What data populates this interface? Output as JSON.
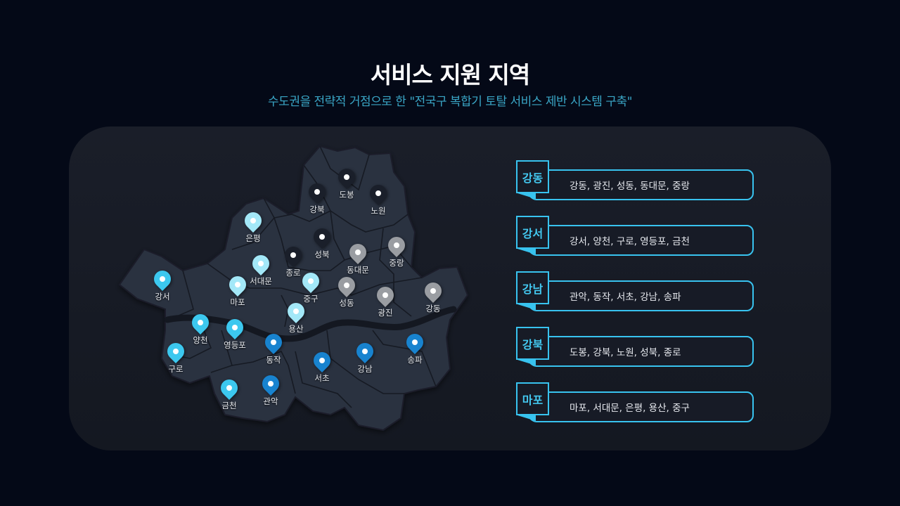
{
  "header": {
    "title": "서비스 지원 지역",
    "subtitle": "수도권을 전략적 거점으로 한 \"전국구 복합기 토탈 서비스 제반 시스템 구축\""
  },
  "colors": {
    "강동": "#9a9da2",
    "강서": "#3cc8ef",
    "강남": "#1883cf",
    "강북": "#1a1f2a",
    "마포": "#a3e8f8",
    "accent": "#38c3ef"
  },
  "districts": [
    {
      "name": "도봉",
      "group": "강북"
    },
    {
      "name": "강북",
      "group": "강북"
    },
    {
      "name": "노원",
      "group": "강북"
    },
    {
      "name": "은평",
      "group": "마포"
    },
    {
      "name": "성북",
      "group": "강북"
    },
    {
      "name": "종로",
      "group": "강북"
    },
    {
      "name": "동대문",
      "group": "강동"
    },
    {
      "name": "중랑",
      "group": "강동"
    },
    {
      "name": "서대문",
      "group": "마포"
    },
    {
      "name": "중구",
      "group": "마포"
    },
    {
      "name": "성동",
      "group": "강동"
    },
    {
      "name": "광진",
      "group": "강동"
    },
    {
      "name": "강동",
      "group": "강동"
    },
    {
      "name": "강서",
      "group": "강서"
    },
    {
      "name": "마포",
      "group": "마포"
    },
    {
      "name": "용산",
      "group": "마포"
    },
    {
      "name": "양천",
      "group": "강서"
    },
    {
      "name": "영등포",
      "group": "강서"
    },
    {
      "name": "구로",
      "group": "강서"
    },
    {
      "name": "동작",
      "group": "강남"
    },
    {
      "name": "서초",
      "group": "강남"
    },
    {
      "name": "강남",
      "group": "강남"
    },
    {
      "name": "송파",
      "group": "강남"
    },
    {
      "name": "금천",
      "group": "강서"
    },
    {
      "name": "관악",
      "group": "강남"
    }
  ],
  "regions": [
    {
      "tag": "강동",
      "areas": "강동, 광진, 성동, 동대문, 중랑"
    },
    {
      "tag": "강서",
      "areas": "강서, 양천, 구로, 영등포, 금천"
    },
    {
      "tag": "강남",
      "areas": "관악, 동작, 서초, 강남, 송파"
    },
    {
      "tag": "강북",
      "areas": "도봉, 강북, 노원, 성북, 종로"
    },
    {
      "tag": "마포",
      "areas": "마포, 서대문, 은평, 용산, 중구"
    }
  ]
}
